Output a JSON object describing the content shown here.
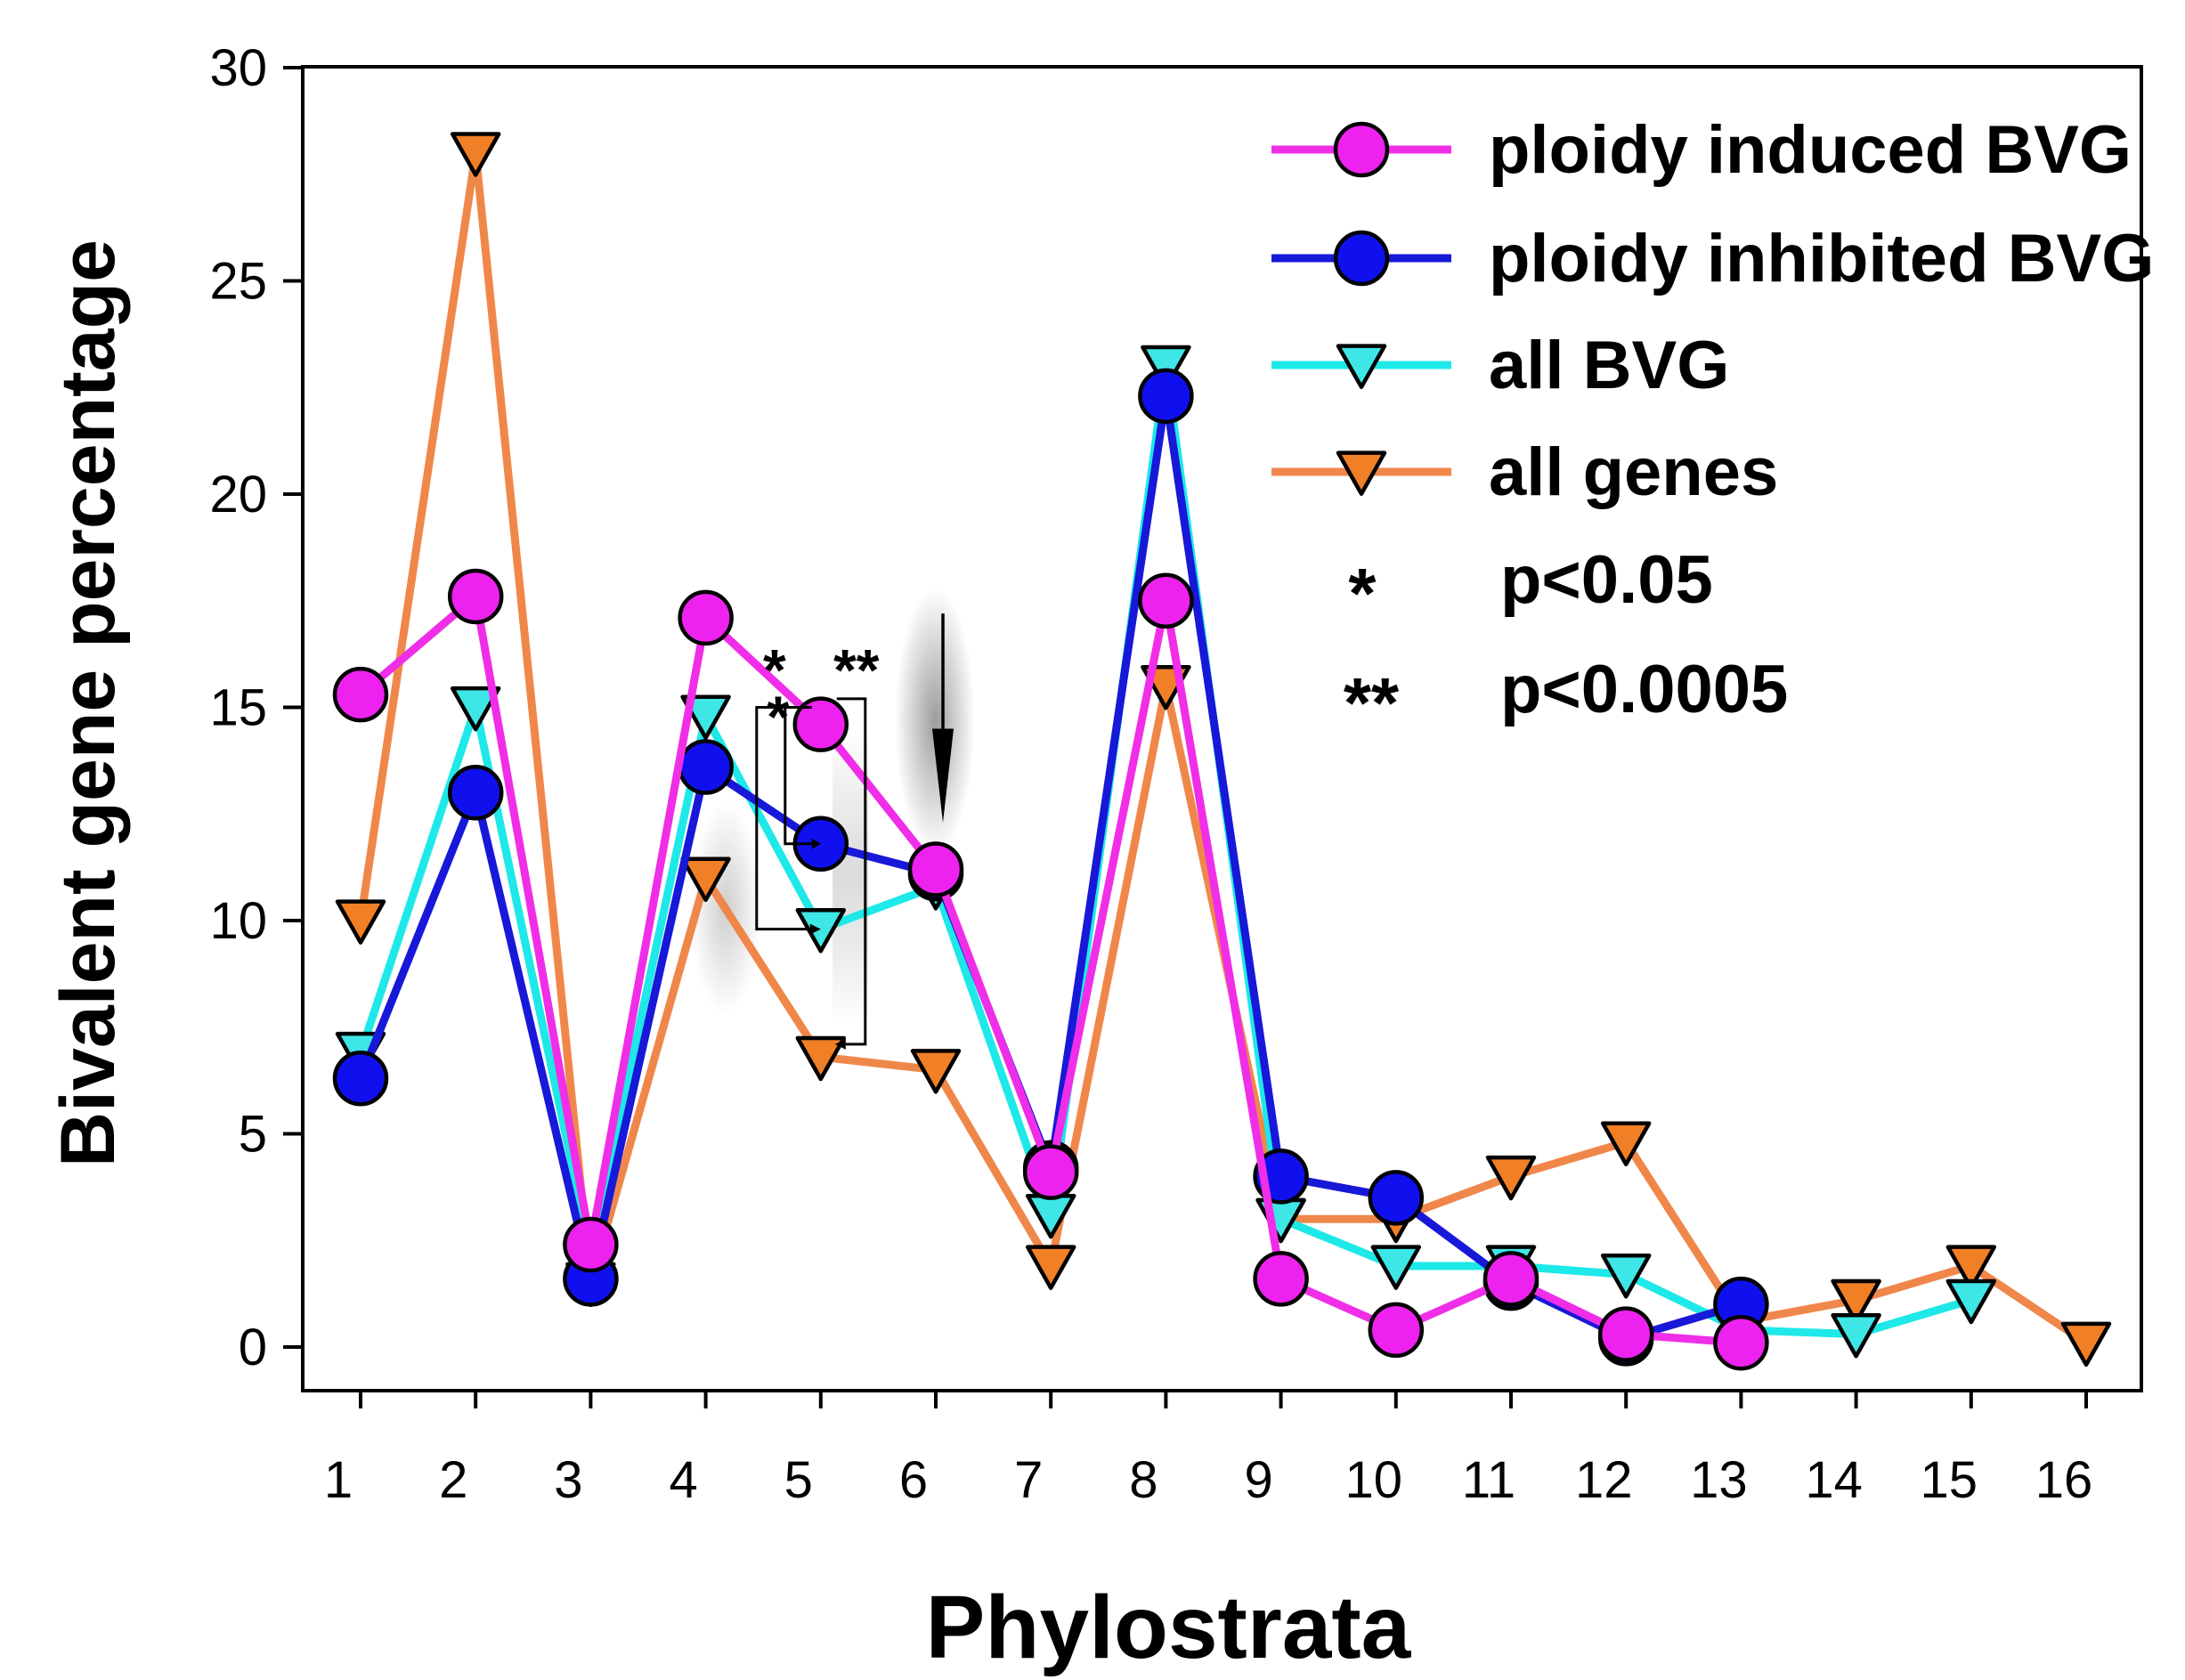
{
  "chart_data": {
    "type": "line",
    "xlabel": "Phylostrata",
    "ylabel": "Bivalent gene percentage",
    "xlim": [
      0.5,
      16.5
    ],
    "ylim": [
      -1,
      30
    ],
    "x_ticks": [
      1,
      2,
      3,
      4,
      5,
      6,
      7,
      8,
      9,
      10,
      11,
      12,
      13,
      14,
      15,
      16
    ],
    "y_ticks": [
      0,
      5,
      10,
      15,
      20,
      25,
      30
    ],
    "series": [
      {
        "name": "all genes",
        "color": "#f0874a",
        "marker": "triangle-down",
        "marker_fill": "#f07f26",
        "x": [
          1,
          2,
          3,
          4,
          5,
          6,
          7,
          8,
          9,
          10,
          11,
          12,
          13,
          14,
          15,
          16
        ],
        "values": [
          10,
          28,
          1.5,
          11,
          6.8,
          6.5,
          1.9,
          15.5,
          3,
          3,
          4,
          4.8,
          0.6,
          1.1,
          1.9,
          0.1
        ]
      },
      {
        "name": "all BVG",
        "color": "#1ee8e8",
        "marker": "triangle-down",
        "marker_fill": "#3ee6e6",
        "x": [
          1,
          2,
          3,
          4,
          5,
          6,
          7,
          8,
          9,
          10,
          11,
          12,
          13,
          14,
          15
        ],
        "values": [
          6.9,
          15,
          2.2,
          14.8,
          9.8,
          10.8,
          3.1,
          23,
          3,
          1.9,
          1.9,
          1.7,
          0.4,
          0.3,
          1.1
        ]
      },
      {
        "name": "ploidy inhibited BVG",
        "color": "#1818d8",
        "marker": "circle",
        "marker_fill": "#1010ee",
        "x": [
          1,
          2,
          3,
          4,
          5,
          6,
          7,
          8,
          9,
          10,
          11,
          12,
          13
        ],
        "values": [
          6.3,
          13,
          1.6,
          13.6,
          11.8,
          11.1,
          4.2,
          22.3,
          4,
          3.5,
          1.5,
          0.2,
          1
        ]
      },
      {
        "name": "ploidy induced BVG",
        "color": "#f02ee8",
        "marker": "circle",
        "marker_fill": "#ee22ee",
        "x": [
          1,
          2,
          3,
          4,
          5,
          6,
          7,
          8,
          9,
          10,
          11,
          12,
          13
        ],
        "values": [
          15.3,
          17.6,
          2.4,
          17.1,
          14.6,
          11.2,
          4.1,
          17.5,
          1.6,
          0.4,
          1.6,
          0.3,
          0.1
        ]
      }
    ],
    "legend": {
      "placement": "top-right",
      "entries": [
        {
          "label": "ploidy induced BVG",
          "series": "ploidy induced BVG"
        },
        {
          "label": "ploidy inhibited BVG",
          "series": "ploidy inhibited BVG"
        },
        {
          "label": "all BVG",
          "series": "all BVG"
        },
        {
          "label": "all genes",
          "series": "all genes"
        }
      ],
      "significance": [
        {
          "symbol": "*",
          "label": "p<0.05"
        },
        {
          "symbol": "**",
          "label": "p<0.0005"
        }
      ]
    },
    "annotations": {
      "brackets_at_x": 5,
      "single_star_labels": [
        "*",
        "*"
      ],
      "double_star_label": "**",
      "arrow_at_x": 6
    }
  }
}
